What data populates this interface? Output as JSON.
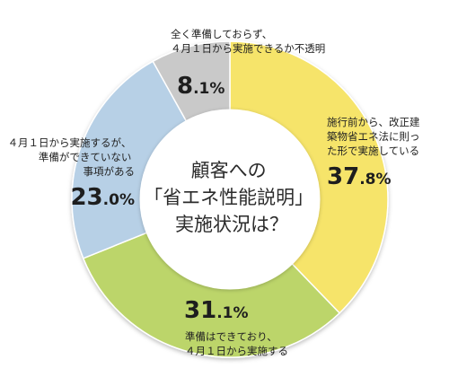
{
  "chart_data": {
    "type": "pie",
    "donut": true,
    "title": "顧客への「省エネ性能説明」実施状況は？",
    "title_lines": [
      "顧客への",
      "「省エネ性能説明」",
      "実施状況は？"
    ],
    "slices": [
      {
        "label_lines": [
          "施行前から、改正建",
          "築物省エネ法に則っ",
          "た形で実施している"
        ],
        "value": 37.8,
        "value_int": "37",
        "value_frac": ".8",
        "unit": "%",
        "color": "#f6e46a"
      },
      {
        "label_lines": [
          "準備はできており、",
          "４月１日から実施する"
        ],
        "value": 31.1,
        "value_int": "31",
        "value_frac": ".1",
        "unit": "%",
        "color": "#bcd56a"
      },
      {
        "label_lines": [
          "４月１日から実施するが、",
          "準備ができていない",
          "事項がある"
        ],
        "value": 23.0,
        "value_int": "23",
        "value_frac": ".0",
        "unit": "%",
        "color": "#b7d0e6"
      },
      {
        "label_lines": [
          "全く準備しておらず、",
          "４月１日から実施できるか不透明"
        ],
        "value": 8.1,
        "value_int": "8",
        "value_frac": ".1",
        "unit": "%",
        "color": "#c9c9c9"
      }
    ]
  }
}
